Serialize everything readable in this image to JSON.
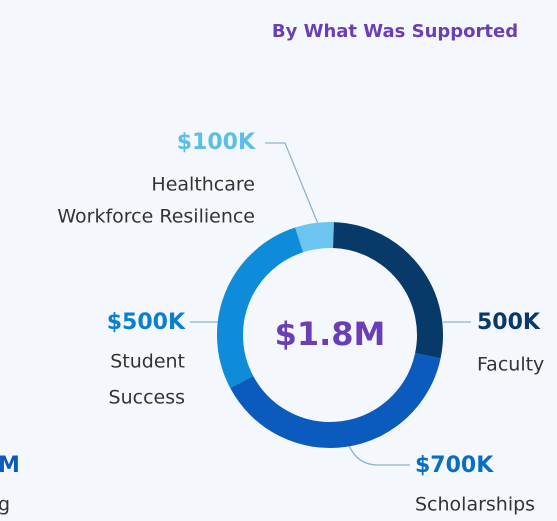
{
  "chart_data": {
    "type": "donut",
    "title": "By What Was Supported",
    "center_label": "$1.8M",
    "categories": [
      [
        "Healthcare",
        "Workforce Resilience"
      ],
      [
        "Faculty"
      ],
      [
        "Scholarships"
      ],
      [
        "Student",
        "Success"
      ]
    ],
    "values": [
      100,
      500,
      700,
      500
    ],
    "value_labels": [
      "$100K",
      "500K",
      "$700K",
      "$500K"
    ],
    "colors": [
      "#6cc4f0",
      "#073a68",
      "#0a5bbd",
      "#0e8bd9"
    ],
    "label_colors": [
      "#5bbde8",
      "#063a6b",
      "#0a6cc4",
      "#0a7ed0"
    ],
    "annotations": [
      "M",
      "g"
    ]
  }
}
